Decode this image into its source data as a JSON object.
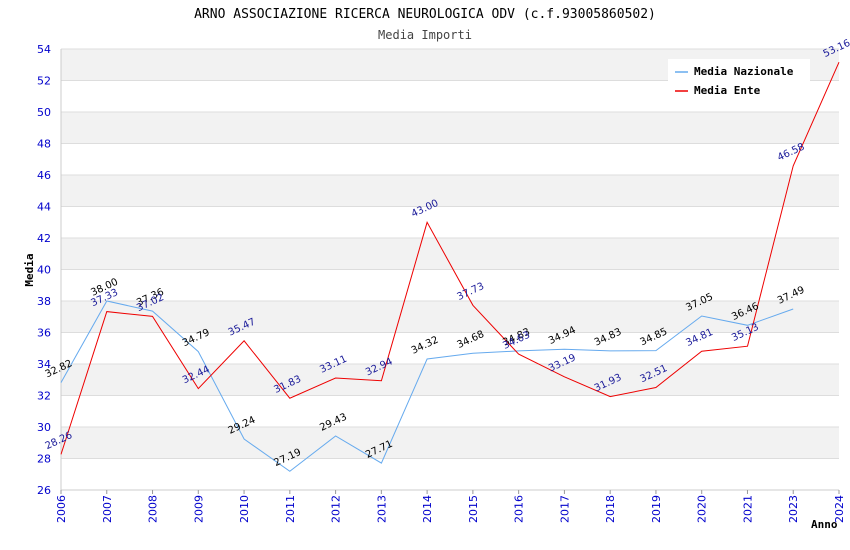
{
  "chart_data": {
    "type": "line",
    "title": "ARNO ASSOCIAZIONE RICERCA NEUROLOGICA ODV (c.f.93005860502)",
    "subtitle": "Media Importi",
    "xlabel": "Anno",
    "ylabel": "Media",
    "ylim": [
      26,
      54
    ],
    "yticks": [
      "26",
      "28",
      "30",
      "32",
      "34",
      "36",
      "38",
      "40",
      "42",
      "44",
      "46",
      "48",
      "50",
      "52",
      "54"
    ],
    "categories": [
      "2006",
      "2007",
      "2008",
      "2009",
      "2010",
      "2011",
      "2012",
      "2013",
      "2014",
      "2015",
      "2016",
      "2017",
      "2018",
      "2019",
      "2020",
      "2021",
      "2023",
      "2024"
    ],
    "grid": true,
    "legend_position": "top-right",
    "series": [
      {
        "name": "Media Nazionale",
        "color": "#66aaee",
        "values": [
          32.82,
          38.0,
          37.36,
          34.79,
          29.24,
          27.19,
          29.43,
          27.71,
          34.32,
          34.68,
          34.83,
          34.94,
          34.83,
          34.85,
          37.05,
          36.46,
          37.49,
          null
        ],
        "labels": [
          "32.82",
          "38.00",
          "37.36",
          "34.79",
          "29.24",
          "27.19",
          "29.43",
          "27.71",
          "34.32",
          "34.68",
          "34.83",
          "34.94",
          "34.83",
          "34.85",
          "37.05",
          "36.46",
          "37.49",
          ""
        ]
      },
      {
        "name": "Media Ente",
        "color": "#ee0000",
        "values": [
          28.26,
          37.33,
          37.02,
          32.44,
          35.47,
          31.83,
          33.11,
          32.94,
          43.0,
          37.73,
          34.63,
          33.19,
          31.93,
          32.51,
          34.81,
          35.13,
          46.58,
          53.16
        ],
        "labels": [
          "28.26",
          "37.33",
          "37.02",
          "32.44",
          "35.47",
          "31.83",
          "33.11",
          "32.94",
          "43.00",
          "37.73",
          "34.63",
          "33.19",
          "31.93",
          "32.51",
          "34.81",
          "35.13",
          "46.58",
          "53.16"
        ]
      }
    ]
  }
}
